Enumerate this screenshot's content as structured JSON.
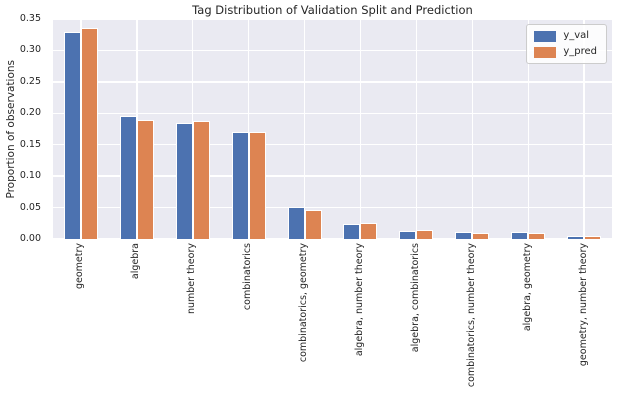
{
  "chart_data": {
    "type": "bar",
    "title": "Tag Distribution of Validation Split and Prediction",
    "xlabel": "",
    "ylabel": "Proportion of observations",
    "ylim": [
      0,
      0.35
    ],
    "yticks": [
      0.0,
      0.05,
      0.1,
      0.15,
      0.2,
      0.25,
      0.3,
      0.35
    ],
    "grid": true,
    "legend_position": "upper right",
    "categories": [
      "geometry",
      "algebra",
      "number theory",
      "combinatorics",
      "combinatorics, geometry",
      "algebra, number theory",
      "algebra, combinatorics",
      "combinatorics, number theory",
      "algebra, geometry",
      "geometry, number theory"
    ],
    "series": [
      {
        "name": "y_val",
        "color": "#4c72b0",
        "values": [
          0.33,
          0.195,
          0.184,
          0.171,
          0.051,
          0.024,
          0.012,
          0.011,
          0.011,
          0.005
        ]
      },
      {
        "name": "y_pred",
        "color": "#dd8452",
        "values": [
          0.335,
          0.19,
          0.187,
          0.171,
          0.046,
          0.026,
          0.015,
          0.009,
          0.01,
          0.005
        ]
      }
    ]
  },
  "style": {
    "plot_background": "#eaeaf2",
    "grid_color": "#ffffff",
    "text_color": "#262626",
    "figure_background": "#ffffff"
  }
}
